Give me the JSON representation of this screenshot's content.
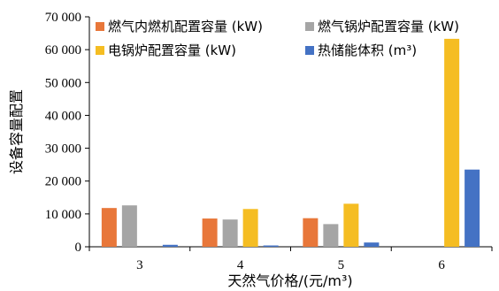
{
  "chart_data": {
    "type": "bar",
    "title": "",
    "xlabel": "天然气价格/(元/m³)",
    "ylabel": "设备容量配置",
    "categories": [
      "3",
      "4",
      "5",
      "6"
    ],
    "ylim": [
      0,
      70000
    ],
    "yticks": [
      0,
      10000,
      20000,
      30000,
      40000,
      50000,
      60000,
      70000
    ],
    "ytick_labels": [
      "0",
      "10 000",
      "20 000",
      "30 000",
      "40 000",
      "50 000",
      "60 000",
      "70 000"
    ],
    "legend_position": "top",
    "grid": false,
    "series": [
      {
        "name": "燃气内燃机配置容量 (kW)",
        "color": "#E8773A",
        "values": [
          11800,
          8600,
          8700,
          0
        ]
      },
      {
        "name": "燃气锅炉配置容量 (kW)",
        "color": "#A5A5A5",
        "values": [
          12600,
          8300,
          6900,
          0
        ]
      },
      {
        "name": "电锅炉配置容量 (kW)",
        "color": "#F5BD22",
        "values": [
          0,
          11500,
          13100,
          63300
        ]
      },
      {
        "name": "热储能体积 (m³)",
        "color": "#4472C4",
        "values": [
          600,
          400,
          1300,
          23500
        ]
      }
    ]
  }
}
